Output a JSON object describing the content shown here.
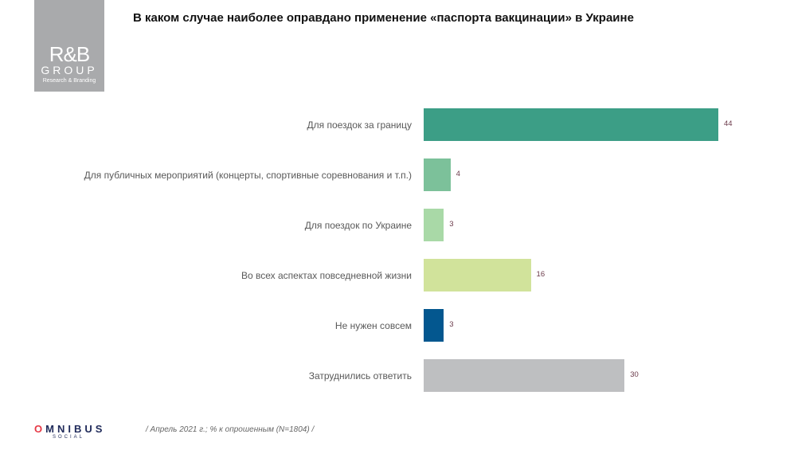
{
  "logo": {
    "line1": "R&B",
    "line2": "GROUP",
    "line3": "Research & Branding"
  },
  "footer": {
    "brand_o": "O",
    "brand_rest": "MNIBUS",
    "brand_sub": "SOCIAL",
    "note": "/ Апрель  2021 г.; % к опрошенным  (N=1804) /"
  },
  "chart_data": {
    "type": "bar",
    "orientation": "horizontal",
    "title": "В каком случае наиболее оправдано применение «паспорта вакцинации» в Украине",
    "categories": [
      "Для поездок за границу",
      "Для публичных  мероприятий (концерты, спортивные соревнования и т.п.)",
      "Для поездок по Украине",
      "Во всех аспектах повседневной жизни",
      "Не нужен  совсем",
      "Затруднились  ответить"
    ],
    "values": [
      44,
      4,
      3,
      16,
      3,
      30
    ],
    "colors": [
      "#3c9e86",
      "#7cc19a",
      "#a9d9a7",
      "#d1e39b",
      "#03578f",
      "#bebfc1"
    ],
    "xlim": [
      0,
      44
    ],
    "grid": false,
    "data_labels": true
  }
}
